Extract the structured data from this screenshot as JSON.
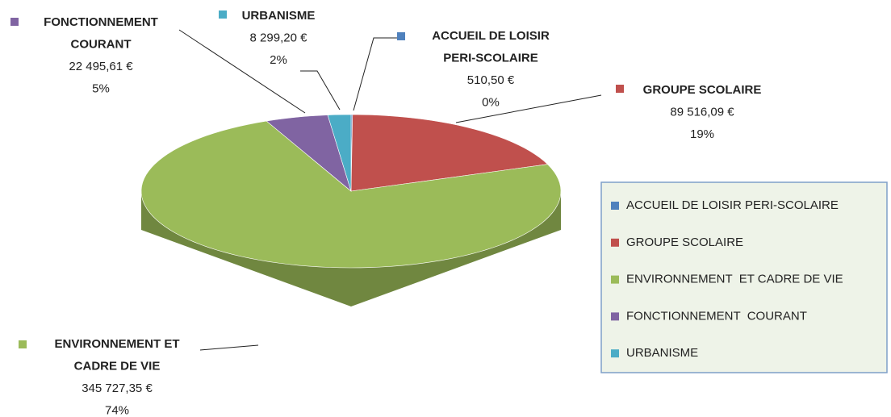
{
  "chart_data": {
    "type": "pie3d",
    "categories": [
      "ACCUEIL DE LOISIR PERI-SCOLAIRE",
      "GROUPE SCOLAIRE",
      "ENVIRONNEMENT  ET CADRE DE VIE",
      "FONCTIONNEMENT  COURANT",
      "URBANISME"
    ],
    "label_lines": [
      [
        "ACCUEIL DE LOISIR",
        "PERI-SCOLAIRE"
      ],
      [
        "GROUPE SCOLAIRE"
      ],
      [
        "ENVIRONNEMENT ET",
        "CADRE DE VIE"
      ],
      [
        "FONCTIONNEMENT",
        "COURANT"
      ],
      [
        "URBANISME"
      ]
    ],
    "values": [
      510.5,
      89516.09,
      345727.35,
      22495.61,
      8299.2
    ],
    "value_labels": [
      "510,50 €",
      "89 516,09 €",
      "345 727,35 €",
      "22 495,61 €",
      "8 299,20 €"
    ],
    "percent_labels": [
      "0%",
      "19%",
      "74%",
      "5%",
      "2%"
    ],
    "colors": [
      "#4f81bd",
      "#c0504d",
      "#9bbb59",
      "#8064a2",
      "#4bacc6"
    ],
    "legend": "right"
  }
}
